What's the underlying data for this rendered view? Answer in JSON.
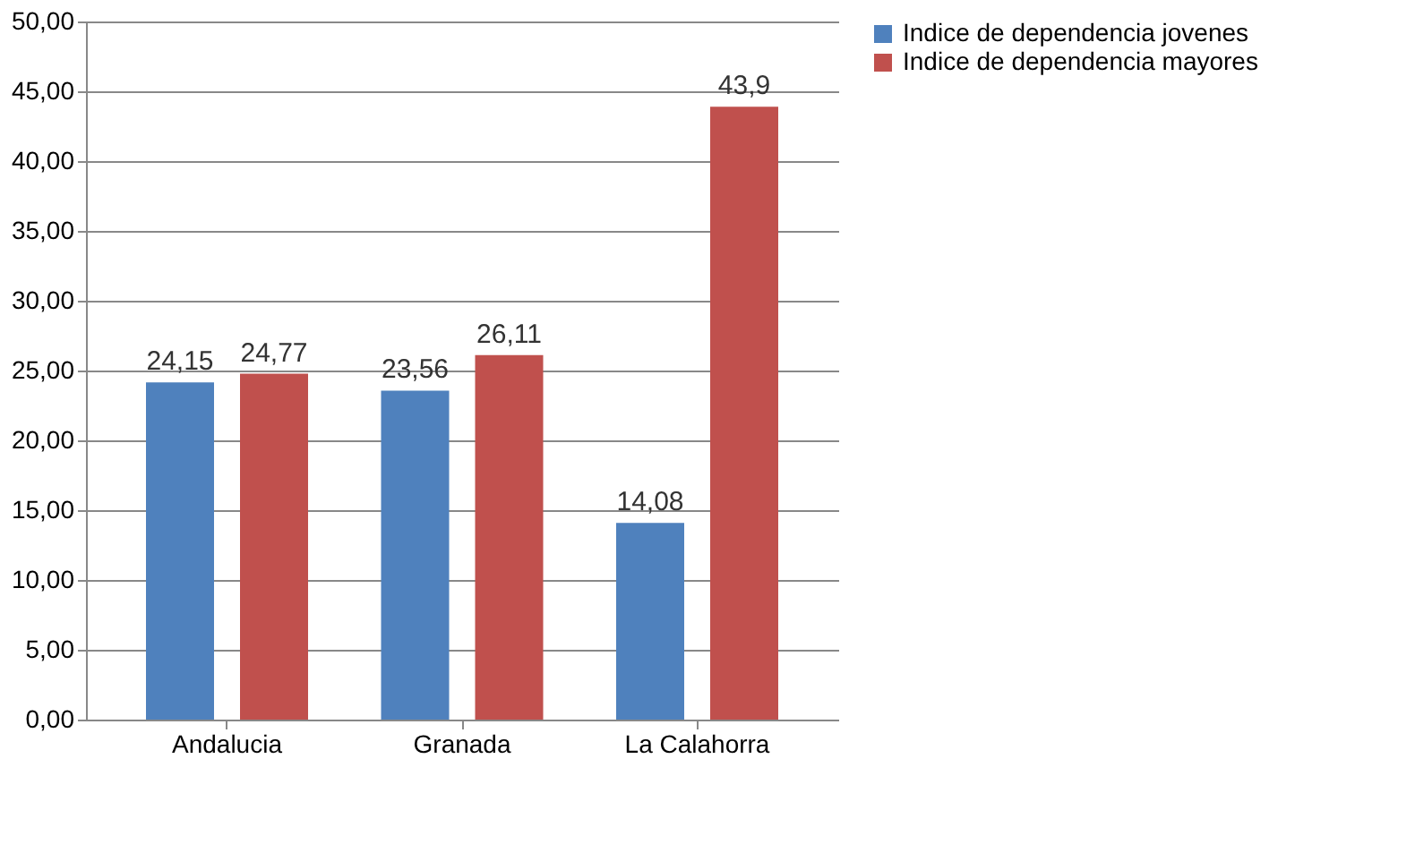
{
  "chart_data": {
    "type": "bar",
    "categories": [
      "Andalucia",
      "Granada",
      "La Calahorra"
    ],
    "series": [
      {
        "name": "Indice de dependencia jovenes",
        "color": "#4f81bd",
        "values": [
          24.15,
          23.56,
          14.08
        ],
        "value_labels": [
          "24,15",
          "23,56",
          "14,08"
        ]
      },
      {
        "name": "Indice de dependencia mayores",
        "color": "#c0504d",
        "values": [
          24.77,
          26.11,
          43.9
        ],
        "value_labels": [
          "24,77",
          "26,11",
          "43,9"
        ]
      }
    ],
    "ylim": [
      0,
      50
    ],
    "yticks": [
      {
        "value": 0,
        "label": "0,00"
      },
      {
        "value": 5,
        "label": "5,00"
      },
      {
        "value": 10,
        "label": "10,00"
      },
      {
        "value": 15,
        "label": "15,00"
      },
      {
        "value": 20,
        "label": "20,00"
      },
      {
        "value": 25,
        "label": "25,00"
      },
      {
        "value": 30,
        "label": "30,00"
      },
      {
        "value": 35,
        "label": "35,00"
      },
      {
        "value": 40,
        "label": "40,00"
      },
      {
        "value": 45,
        "label": "45,00"
      },
      {
        "value": 50,
        "label": "50,00"
      }
    ],
    "grid": "y",
    "legend": "right"
  }
}
